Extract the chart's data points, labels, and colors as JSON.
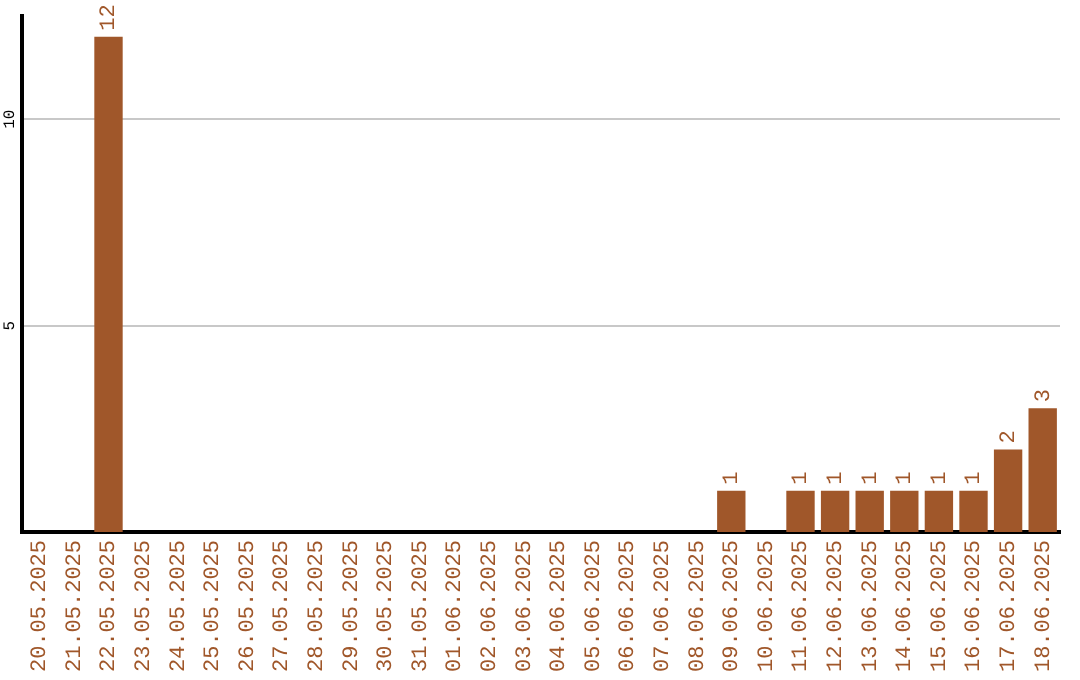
{
  "chart_data": {
    "type": "bar",
    "categories": [
      "20.05.2025",
      "21.05.2025",
      "22.05.2025",
      "23.05.2025",
      "24.05.2025",
      "25.05.2025",
      "26.05.2025",
      "27.05.2025",
      "28.05.2025",
      "29.05.2025",
      "30.05.2025",
      "31.05.2025",
      "01.06.2025",
      "02.06.2025",
      "03.06.2025",
      "04.06.2025",
      "05.06.2025",
      "06.06.2025",
      "07.06.2025",
      "08.06.2025",
      "09.06.2025",
      "10.06.2025",
      "11.06.2025",
      "12.06.2025",
      "13.06.2025",
      "14.06.2025",
      "15.06.2025",
      "16.06.2025",
      "17.06.2025",
      "18.06.2025"
    ],
    "values": [
      0,
      0,
      12,
      0,
      0,
      0,
      0,
      0,
      0,
      0,
      0,
      0,
      0,
      0,
      0,
      0,
      0,
      0,
      0,
      0,
      1,
      0,
      1,
      1,
      1,
      1,
      1,
      1,
      2,
      3
    ],
    "value_labels": [
      null,
      null,
      "12",
      null,
      null,
      null,
      null,
      null,
      null,
      null,
      null,
      null,
      null,
      null,
      null,
      null,
      null,
      null,
      null,
      null,
      "1",
      null,
      "1",
      "1",
      "1",
      "1",
      "1",
      "1",
      "2",
      "3"
    ],
    "color": "#a0572a",
    "ylim": [
      0,
      12.5
    ],
    "yticks": [
      5,
      10
    ],
    "grid": "y",
    "legend": false
  }
}
